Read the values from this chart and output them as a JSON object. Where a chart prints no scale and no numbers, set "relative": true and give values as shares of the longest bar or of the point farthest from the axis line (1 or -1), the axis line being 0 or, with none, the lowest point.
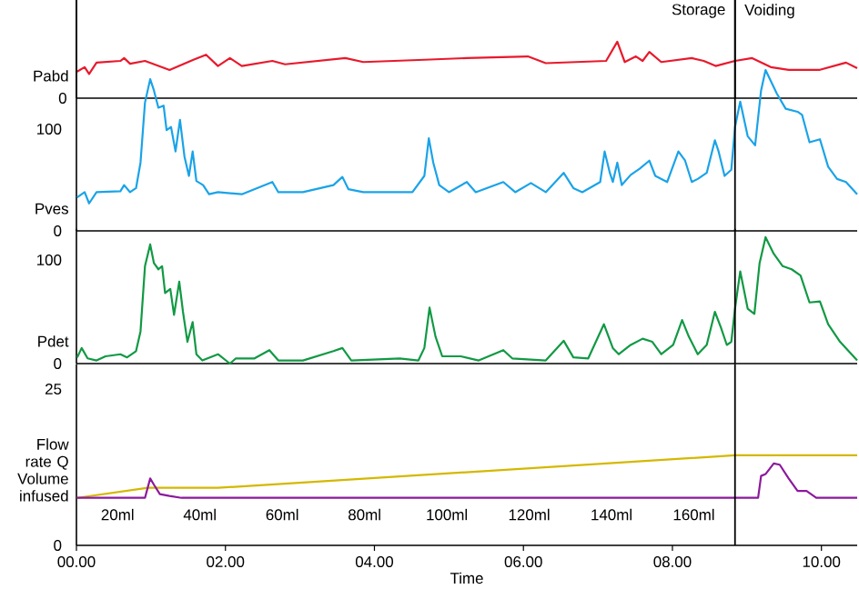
{
  "chart_data": [
    {
      "type": "line",
      "ylabel": "Pabd",
      "relative": true,
      "xlim": [
        0,
        10.48
      ],
      "tick_labels": "y",
      "annotations": [
        "Storage",
        "Voiding",
        "0"
      ],
      "ref_lines": [
        {
          "axis": "x",
          "value": 8.84
        }
      ],
      "series": [
        {
          "color": "#e8192c",
          "x": [
            0.01,
            0.11,
            0.17,
            0.27,
            0.59,
            0.64,
            0.72,
            0.92,
            1.25,
            1.57,
            1.74,
            1.9,
            2.06,
            2.22,
            2.63,
            2.8,
            3.61,
            3.85,
            4.67,
            5.24,
            6.06,
            6.3,
            7.11,
            7.26,
            7.36,
            7.51,
            7.6,
            7.69,
            7.85,
            8.26,
            8.42,
            8.58,
            8.84,
            9.07,
            9.32,
            9.56,
            9.97,
            10.33,
            10.48
          ],
          "values": [
            0.47,
            0.55,
            0.43,
            0.63,
            0.66,
            0.71,
            0.61,
            0.66,
            0.5,
            0.68,
            0.77,
            0.57,
            0.71,
            0.57,
            0.66,
            0.6,
            0.71,
            0.64,
            0.68,
            0.71,
            0.74,
            0.62,
            0.66,
            1,
            0.64,
            0.74,
            0.66,
            0.82,
            0.64,
            0.71,
            0.66,
            0.57,
            0.66,
            0.71,
            0.55,
            0.5,
            0.5,
            0.63,
            0.53
          ]
        }
      ]
    },
    {
      "type": "line",
      "ylabel": "Pves",
      "ylim": [
        0,
        227
      ],
      "yticks": [
        0,
        100
      ],
      "xlim": [
        0,
        10.48
      ],
      "tick_labels": "y",
      "ref_lines": [
        {
          "axis": "x",
          "value": 8.84
        }
      ],
      "series": [
        {
          "color": "#1aa3e8",
          "x": [
            0.01,
            0.11,
            0.17,
            0.27,
            0.59,
            0.64,
            0.72,
            0.8,
            0.86,
            0.92,
            0.99,
            1.04,
            1.1,
            1.17,
            1.21,
            1.27,
            1.33,
            1.39,
            1.45,
            1.51,
            1.56,
            1.61,
            1.7,
            1.78,
            1.9,
            2.22,
            2.63,
            2.71,
            3.04,
            3.45,
            3.57,
            3.65,
            3.85,
            4.51,
            4.67,
            4.73,
            4.79,
            4.87,
            5.0,
            5.24,
            5.36,
            5.73,
            5.89,
            6.1,
            6.3,
            6.54,
            6.67,
            6.79,
            7.03,
            7.09,
            7.16,
            7.2,
            7.26,
            7.32,
            7.44,
            7.56,
            7.69,
            7.77,
            7.93,
            8.08,
            8.17,
            8.26,
            8.34,
            8.46,
            8.57,
            8.62,
            8.7,
            8.79,
            8.84,
            8.91,
            9.01,
            9.11,
            9.19,
            9.25,
            9.4,
            9.52,
            9.68,
            9.74,
            9.84,
            9.98,
            10.09,
            10.21,
            10.33,
            10.48
          ],
          "values": [
            33,
            38,
            27,
            38,
            39,
            45,
            38,
            42,
            67,
            126,
            149,
            138,
            121,
            123,
            99,
            102,
            78,
            109,
            73,
            54,
            78,
            49,
            45,
            36,
            38,
            36,
            48,
            38,
            38,
            45,
            53,
            41,
            38,
            38,
            54,
            91,
            67,
            45,
            38,
            48,
            38,
            48,
            38,
            47,
            38,
            57,
            42,
            38,
            48,
            78,
            57,
            48,
            67,
            45,
            55,
            61,
            69,
            54,
            48,
            78,
            69,
            48,
            51,
            57,
            89,
            78,
            54,
            60,
            102,
            127,
            93,
            84,
            138,
            158,
            135,
            120,
            117,
            114,
            87,
            90,
            63,
            51,
            48,
            36
          ]
        }
      ]
    },
    {
      "type": "line",
      "ylabel": "Pdet",
      "ylim": [
        0,
        130
      ],
      "yticks": [
        0,
        100
      ],
      "xlim": [
        0,
        10.48
      ],
      "tick_labels": "y",
      "ref_lines": [
        {
          "axis": "x",
          "value": 8.84
        }
      ],
      "series": [
        {
          "color": "#119944",
          "x": [
            0.01,
            0.07,
            0.15,
            0.27,
            0.39,
            0.59,
            0.68,
            0.8,
            0.86,
            0.92,
            0.99,
            1.04,
            1.1,
            1.15,
            1.19,
            1.26,
            1.31,
            1.38,
            1.43,
            1.49,
            1.56,
            1.61,
            1.69,
            1.9,
            2.06,
            2.14,
            2.39,
            2.59,
            2.71,
            3.04,
            3.45,
            3.57,
            3.69,
            4.34,
            4.59,
            4.67,
            4.74,
            4.82,
            4.91,
            5.16,
            5.4,
            5.73,
            5.85,
            6.3,
            6.54,
            6.67,
            6.87,
            7.08,
            7.2,
            7.28,
            7.44,
            7.6,
            7.73,
            7.85,
            8.01,
            8.13,
            8.22,
            8.34,
            8.46,
            8.57,
            8.65,
            8.73,
            8.79,
            8.84,
            8.91,
            9.01,
            9.1,
            9.17,
            9.25,
            9.36,
            9.48,
            9.6,
            9.72,
            9.84,
            9.98,
            10.09,
            10.25,
            10.48
          ],
          "values": [
            6,
            15,
            5,
            3,
            7,
            9,
            6,
            12,
            31,
            94,
            115,
            97,
            91,
            94,
            68,
            72,
            47,
            79,
            50,
            21,
            40,
            9,
            3,
            9,
            0,
            5,
            5,
            13,
            3,
            3,
            12,
            15,
            3,
            5,
            3,
            15,
            54,
            26,
            7,
            7,
            3,
            13,
            5,
            3,
            22,
            6,
            5,
            38,
            15,
            9,
            18,
            24,
            21,
            9,
            18,
            42,
            26,
            9,
            18,
            50,
            35,
            18,
            21,
            53,
            89,
            53,
            48,
            97,
            122,
            106,
            94,
            91,
            85,
            59,
            60,
            38,
            21,
            3
          ]
        }
      ]
    },
    {
      "type": "line",
      "ylabel": "Flow rate Q Volume infused",
      "xlabel": "Time",
      "ylim": [
        0,
        29
      ],
      "yticks": [
        0,
        25
      ],
      "xlim": [
        0,
        10.48
      ],
      "xticks": [
        {
          "value": 0,
          "label": "00.00"
        },
        {
          "value": 2,
          "label": "02.00"
        },
        {
          "value": 4,
          "label": "04.00"
        },
        {
          "value": 6,
          "label": "06.00"
        },
        {
          "value": 8,
          "label": "08.00"
        },
        {
          "value": 10,
          "label": "10.00"
        }
      ],
      "ref_lines": [
        {
          "axis": "x",
          "value": 8.84
        }
      ],
      "annotations": [
        "20ml",
        "40ml",
        "60ml",
        "80ml",
        "100ml",
        "120ml",
        "140ml",
        "160ml"
      ],
      "series": [
        {
          "color": "#d4b800",
          "x": [
            0.01,
            0.96,
            1.9,
            8.84,
            10.48
          ],
          "values": [
            7.6,
            9.2,
            9.2,
            14.4,
            14.4
          ]
        },
        {
          "color": "#8b1a9b",
          "x": [
            0.01,
            0.92,
            0.99,
            1.04,
            1.12,
            1.25,
            1.41,
            8.84,
            9.15,
            9.19,
            9.25,
            9.36,
            9.44,
            9.56,
            9.68,
            9.8,
            9.93,
            10.48
          ],
          "values": [
            7.6,
            7.6,
            10.7,
            9.7,
            8.2,
            7.9,
            7.6,
            7.6,
            7.6,
            11.1,
            11.4,
            13.1,
            12.9,
            10.7,
            8.7,
            8.7,
            7.6,
            7.6
          ]
        }
      ]
    }
  ]
}
